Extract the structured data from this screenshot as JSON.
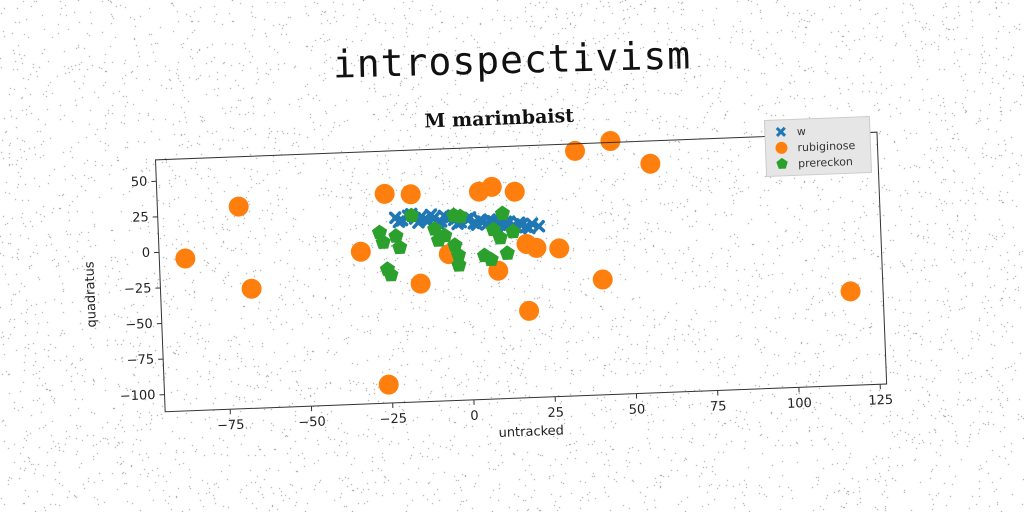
{
  "page_title": "introspectivism",
  "chart_data": {
    "type": "scatter",
    "title": "M marimbaist",
    "xlabel": "untracked",
    "ylabel": "quadratus",
    "xlim": [
      -95,
      127
    ],
    "ylim": [
      -112,
      65
    ],
    "xticks": [
      -75,
      -50,
      -25,
      0,
      25,
      50,
      75,
      100,
      125
    ],
    "yticks": [
      50,
      25,
      0,
      -25,
      -50,
      -75,
      -100
    ],
    "xtick_labels": [
      "−75",
      "−50",
      "−25",
      "0",
      "25",
      "50",
      "75",
      "100",
      "125"
    ],
    "ytick_labels": [
      "50",
      "25",
      "0",
      "−25",
      "−50",
      "−75",
      "−100"
    ],
    "grid": false,
    "legend_position": "top-right",
    "series": [
      {
        "name": "w",
        "marker": "x",
        "color": "#1f77b4",
        "points": [
          [
            -22,
            18
          ],
          [
            -20,
            16
          ],
          [
            -18,
            19
          ],
          [
            -16,
            17
          ],
          [
            -14,
            18
          ],
          [
            -12,
            15
          ],
          [
            -10,
            17
          ],
          [
            -8,
            14
          ],
          [
            -6,
            16
          ],
          [
            -4,
            15
          ],
          [
            -2,
            13
          ],
          [
            0,
            15
          ],
          [
            2,
            12
          ],
          [
            4,
            14
          ],
          [
            6,
            11
          ],
          [
            8,
            13
          ],
          [
            10,
            10
          ],
          [
            12,
            12
          ],
          [
            14,
            9
          ],
          [
            16,
            11
          ],
          [
            18,
            8
          ],
          [
            20,
            10
          ],
          [
            22,
            8
          ],
          [
            -21,
            15
          ],
          [
            -15,
            14
          ],
          [
            -9,
            13
          ],
          [
            -3,
            12
          ],
          [
            3,
            11
          ],
          [
            9,
            9
          ],
          [
            15,
            8
          ],
          [
            19,
            7
          ],
          [
            -17,
            20
          ],
          [
            -11,
            19
          ],
          [
            -5,
            17
          ],
          [
            1,
            16
          ],
          [
            7,
            14
          ],
          [
            13,
            12
          ],
          [
            -13,
            16
          ],
          [
            5,
            13
          ],
          [
            11,
            11
          ],
          [
            17,
            10
          ],
          [
            -7,
            18
          ]
        ]
      },
      {
        "name": "rubiginose",
        "marker": "o",
        "color": "#ff7f0e",
        "points": [
          [
            -87,
            -5
          ],
          [
            -70,
            30
          ],
          [
            -67,
            -28
          ],
          [
            -33,
            -5
          ],
          [
            -25,
            35
          ],
          [
            -17,
            34
          ],
          [
            -15,
            -29
          ],
          [
            -6,
            -9
          ],
          [
            4,
            34
          ],
          [
            8,
            37
          ],
          [
            15,
            33
          ],
          [
            18,
            -4
          ],
          [
            21,
            -7
          ],
          [
            28,
            -8
          ],
          [
            34,
            60
          ],
          [
            45,
            66
          ],
          [
            57,
            49
          ],
          [
            9,
            -22
          ],
          [
            18,
            -51
          ],
          [
            41,
            -31
          ],
          [
            117,
            -46
          ],
          [
            -26,
            -99
          ]
        ]
      },
      {
        "name": "prereckon",
        "marker": "p",
        "color": "#2ca02c",
        "points": [
          [
            -27,
            8
          ],
          [
            -26,
            1
          ],
          [
            -22,
            5
          ],
          [
            -21,
            -3
          ],
          [
            -25,
            -18
          ],
          [
            -24,
            -22
          ],
          [
            -17,
            19
          ],
          [
            -10,
            9
          ],
          [
            -9,
            1
          ],
          [
            -7,
            4
          ],
          [
            -4,
            -3
          ],
          [
            -3,
            -10
          ],
          [
            -3,
            -17
          ],
          [
            -2,
            17
          ],
          [
            -4,
            18
          ],
          [
            5,
            -11
          ],
          [
            7,
            -14
          ],
          [
            8,
            7
          ],
          [
            10,
            1
          ],
          [
            11,
            18
          ],
          [
            12,
            -10
          ],
          [
            14,
            5
          ]
        ]
      }
    ]
  }
}
